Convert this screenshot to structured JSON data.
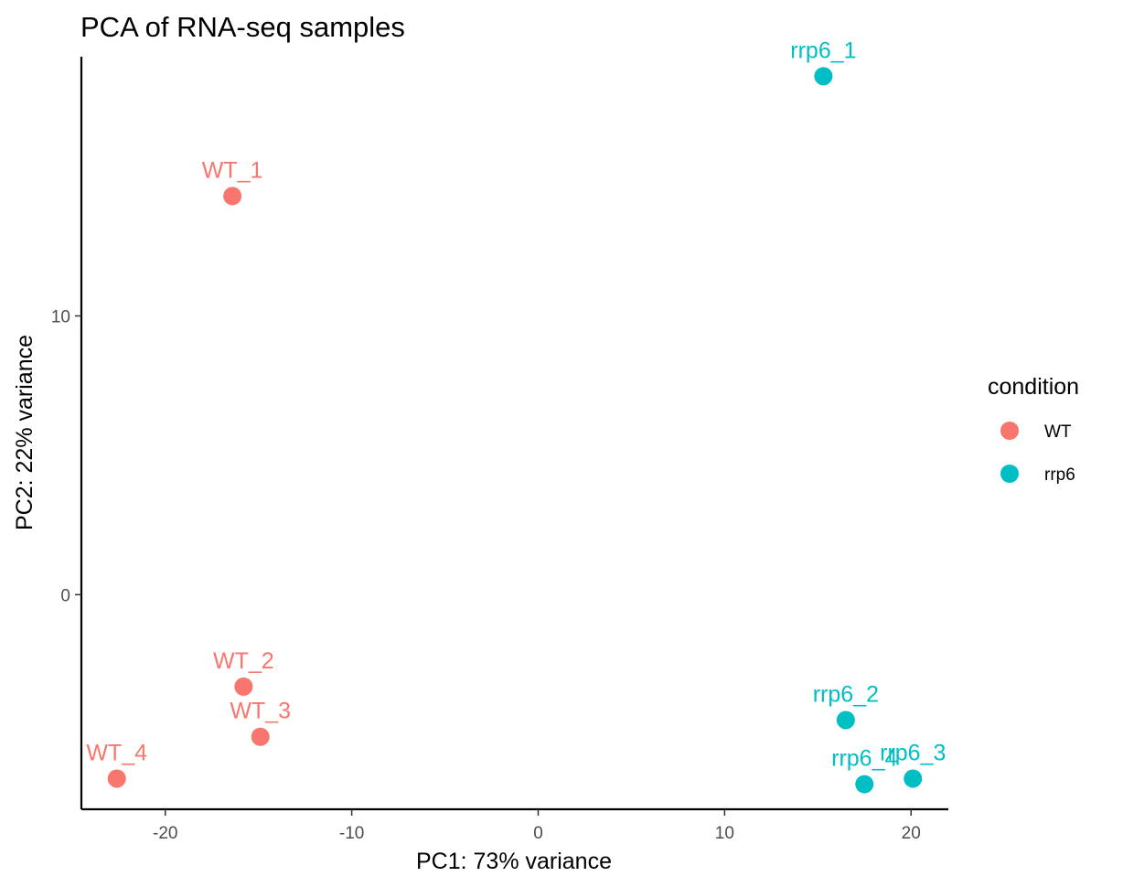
{
  "chart_data": {
    "type": "scatter",
    "title": "PCA of RNA-seq samples",
    "xlabel": "PC1: 73% variance",
    "ylabel": "PC2: 22% variance",
    "xlim": [
      -24.5,
      22
    ],
    "ylim": [
      -7.7,
      19.3
    ],
    "xticks": [
      -20,
      -10,
      0,
      10,
      20
    ],
    "xtick_labels": [
      "-20",
      "-10",
      "0",
      "10",
      "20"
    ],
    "yticks": [
      0,
      10
    ],
    "ytick_labels": [
      "0",
      "10"
    ],
    "grid": false,
    "legend_position": "right",
    "legend": {
      "title": "condition",
      "entries": [
        {
          "label": "WT",
          "color": "#F8766D"
        },
        {
          "label": "rrp6",
          "color": "#00BFC4"
        }
      ]
    },
    "series": [
      {
        "name": "WT",
        "color": "#F8766D",
        "points": [
          {
            "label": "WT_1",
            "x": -16.4,
            "y": 14.3
          },
          {
            "label": "WT_2",
            "x": -15.8,
            "y": -3.3
          },
          {
            "label": "WT_3",
            "x": -14.9,
            "y": -5.1
          },
          {
            "label": "WT_4",
            "x": -22.6,
            "y": -6.6
          }
        ]
      },
      {
        "name": "rrp6",
        "color": "#00BFC4",
        "points": [
          {
            "label": "rrp6_1",
            "x": 15.3,
            "y": 18.6
          },
          {
            "label": "rrp6_2",
            "x": 16.5,
            "y": -4.5
          },
          {
            "label": "rrp6_3",
            "x": 20.1,
            "y": -6.6
          },
          {
            "label": "rrp6_4",
            "x": 17.5,
            "y": -6.8
          }
        ]
      }
    ]
  }
}
